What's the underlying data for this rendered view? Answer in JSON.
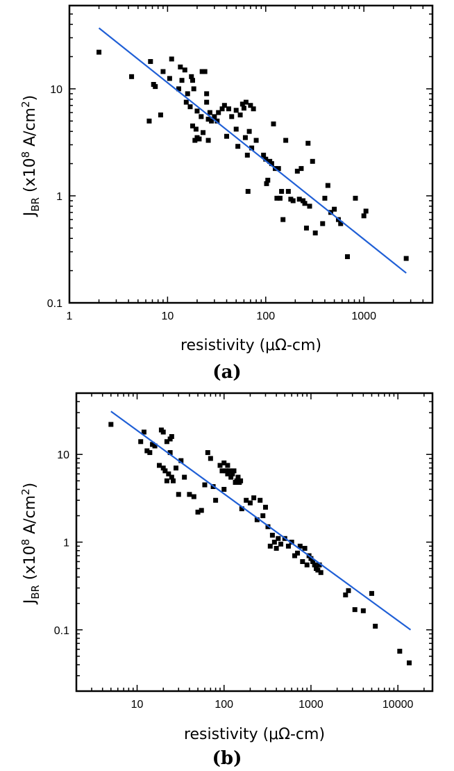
{
  "chart_data": [
    {
      "type": "scatter",
      "panel_label": "(a)",
      "xlabel": "resistivity (μΩ-cm)",
      "ylabel_main": "J",
      "ylabel_sub": "BR",
      "ylabel_mid": " (x10",
      "ylabel_sup1": "8",
      "ylabel_rest": " A/cm",
      "ylabel_sup2": "2",
      "ylabel_end": ")",
      "x_scale": "log",
      "y_scale": "log",
      "xlim": [
        1,
        5000
      ],
      "ylim": [
        0.1,
        60
      ],
      "x_ticks": [
        1,
        10,
        100,
        1000
      ],
      "x_tick_labels": [
        "1",
        "10",
        "100",
        "1000"
      ],
      "y_ticks": [
        0.1,
        1,
        10
      ],
      "y_tick_labels": [
        "0.1",
        "1",
        "10"
      ],
      "grid": false,
      "marker_color": "#000000",
      "fit_color": "#1f5fd6",
      "fit_line": {
        "x": [
          2,
          2700
        ],
        "y": [
          37,
          0.19
        ]
      },
      "x": [
        2,
        4.3,
        6.5,
        6.7,
        7.2,
        7.5,
        8.5,
        9.0,
        10.5,
        11,
        13,
        13.5,
        14,
        15,
        15.5,
        16,
        17,
        17.5,
        18,
        18,
        18.5,
        19,
        19.5,
        20,
        20,
        21,
        22,
        22.5,
        23,
        24,
        25,
        25,
        26,
        26,
        27,
        28,
        30,
        32,
        33,
        36,
        38,
        40,
        42,
        45,
        50,
        50,
        52,
        55,
        58,
        60,
        62,
        63,
        65,
        66,
        68,
        70,
        72,
        75,
        80,
        95,
        100,
        102,
        105,
        110,
        115,
        120,
        125,
        130,
        135,
        140,
        145,
        150,
        160,
        170,
        180,
        190,
        210,
        220,
        230,
        240,
        250,
        260,
        270,
        280,
        300,
        320,
        380,
        400,
        430,
        460,
        500,
        550,
        580,
        680,
        820,
        1000,
        1050,
        2700
      ],
      "y": [
        22,
        13,
        5.0,
        18,
        11,
        10.5,
        5.7,
        14.5,
        12.5,
        19,
        10,
        16,
        12,
        15,
        7.5,
        9,
        6.8,
        13,
        4.5,
        12,
        10,
        3.3,
        4.2,
        3.5,
        6.2,
        3.4,
        5.5,
        14.5,
        3.9,
        14.5,
        9,
        7.5,
        5.2,
        3.3,
        6.0,
        5.0,
        5.5,
        5.0,
        6.0,
        6.5,
        7,
        3.6,
        6.5,
        5.5,
        6.3,
        4.2,
        2.9,
        5.7,
        7.2,
        6.6,
        3.5,
        7.5,
        2.4,
        1.1,
        4.0,
        7.0,
        2.8,
        6.5,
        3.3,
        2.4,
        2.2,
        1.3,
        1.4,
        2.1,
        2.0,
        4.7,
        1.8,
        0.95,
        1.8,
        0.95,
        1.1,
        0.6,
        3.3,
        1.1,
        0.93,
        0.9,
        1.7,
        0.93,
        1.8,
        0.9,
        0.85,
        0.5,
        3.1,
        0.8,
        2.1,
        0.45,
        0.55,
        0.95,
        1.25,
        0.7,
        0.75,
        0.6,
        0.55,
        0.27,
        0.95,
        0.65,
        0.72,
        0.26
      ]
    },
    {
      "type": "scatter",
      "panel_label": "(b)",
      "xlabel": "resistivity (μΩ-cm)",
      "ylabel_main": "J",
      "ylabel_sub": "BR",
      "ylabel_mid": " (x10",
      "ylabel_sup1": "8",
      "ylabel_rest": " A/cm",
      "ylabel_sup2": "2",
      "ylabel_end": ")",
      "x_scale": "log",
      "y_scale": "log",
      "xlim": [
        2,
        25000
      ],
      "ylim": [
        0.02,
        50
      ],
      "x_ticks": [
        10,
        100,
        1000,
        10000
      ],
      "x_tick_labels": [
        "10",
        "100",
        "1000",
        "10000"
      ],
      "y_ticks": [
        0.1,
        1,
        10
      ],
      "y_tick_labels": [
        "0.1",
        "1",
        "10"
      ],
      "grid": false,
      "marker_color": "#000000",
      "fit_color": "#1f5fd6",
      "fit_line": {
        "x": [
          5,
          14000
        ],
        "y": [
          31,
          0.1
        ]
      },
      "x": [
        5,
        11,
        12,
        13,
        14,
        15,
        16,
        18,
        19,
        20,
        20,
        21,
        22,
        22,
        23,
        24,
        24,
        25,
        25,
        26,
        28,
        30,
        32,
        35,
        40,
        45,
        50,
        55,
        60,
        65,
        70,
        75,
        80,
        90,
        95,
        100,
        100,
        105,
        110,
        110,
        115,
        120,
        125,
        130,
        135,
        140,
        145,
        150,
        155,
        160,
        180,
        200,
        220,
        240,
        260,
        280,
        300,
        320,
        340,
        360,
        380,
        400,
        420,
        450,
        500,
        550,
        600,
        650,
        700,
        750,
        800,
        850,
        900,
        950,
        1000,
        1050,
        1100,
        1150,
        1200,
        1250,
        1300,
        2500,
        2700,
        3200,
        4000,
        5000,
        5500,
        10500,
        13500
      ],
      "y": [
        22,
        14,
        18,
        11,
        10.5,
        13,
        12.5,
        7.5,
        19,
        7,
        18,
        6.5,
        5,
        14,
        6,
        10.5,
        15,
        5.5,
        16,
        5,
        7,
        3.5,
        8.5,
        5.5,
        3.5,
        3.3,
        2.2,
        2.3,
        4.5,
        10.5,
        9,
        4.3,
        3.0,
        7.5,
        6.5,
        8.0,
        4.0,
        6.5,
        7.5,
        6.0,
        6.5,
        5.5,
        6.0,
        6.5,
        4.8,
        5.0,
        5.5,
        4.8,
        5.0,
        2.4,
        3.0,
        2.8,
        3.2,
        1.8,
        3.0,
        2.0,
        2.5,
        1.5,
        0.9,
        1.2,
        1.0,
        0.85,
        1.1,
        0.95,
        1.1,
        0.9,
        1.0,
        0.7,
        0.75,
        0.9,
        0.6,
        0.85,
        0.55,
        0.7,
        0.65,
        0.6,
        0.55,
        0.5,
        0.48,
        0.55,
        0.45,
        0.25,
        0.28,
        0.17,
        0.165,
        0.26,
        0.11,
        0.057,
        0.042
      ]
    }
  ]
}
